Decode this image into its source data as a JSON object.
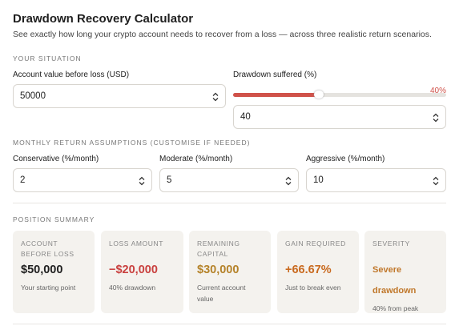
{
  "header": {
    "title": "Drawdown Recovery Calculator",
    "subtitle": "See exactly how long your crypto account needs to recover from a loss — across three realistic return scenarios."
  },
  "situation": {
    "heading": "YOUR SITUATION",
    "account": {
      "label": "Account value before loss (USD)",
      "value": 50000
    },
    "drawdown": {
      "label": "Drawdown suffered (%)",
      "value": 40,
      "value_label": "40%"
    }
  },
  "assumptions": {
    "heading": "MONTHLY RETURN ASSUMPTIONS (CUSTOMISE IF NEEDED)",
    "fields": [
      {
        "label": "Conservative (%/month)",
        "value": 2
      },
      {
        "label": "Moderate (%/month)",
        "value": 5
      },
      {
        "label": "Aggressive (%/month)",
        "value": 10
      }
    ]
  },
  "summary": {
    "heading": "POSITION SUMMARY",
    "cards": [
      {
        "label": "ACCOUNT BEFORE LOSS",
        "value": "$50,000",
        "note": "Your starting point"
      },
      {
        "label": "LOSS AMOUNT",
        "value": "−$20,000",
        "note": "40% drawdown"
      },
      {
        "label": "REMAINING CAPITAL",
        "value": "$30,000",
        "note": "Current account value"
      },
      {
        "label": "GAIN REQUIRED",
        "value": "+66.67%",
        "note": "Just to break even"
      },
      {
        "label": "SEVERITY",
        "value": "Severe drawdown",
        "note": "40% from peak"
      }
    ]
  }
}
